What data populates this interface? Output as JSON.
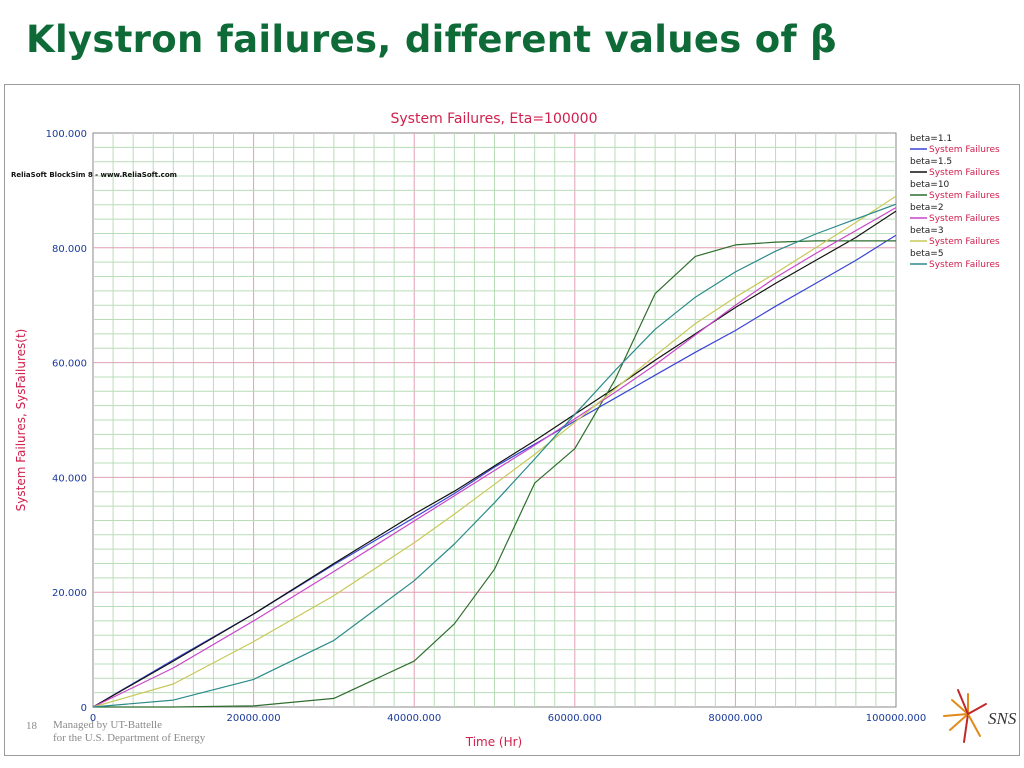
{
  "slide": {
    "title": "Klystron failures, different values of β",
    "page_number": "18",
    "footer_line1": "Managed by UT-Battelle",
    "footer_line2": "for the U.S. Department of Energy",
    "logo_text": "SNS"
  },
  "source": "ReliaSoft BlockSim 8 - www.ReliaSoft.com",
  "colors": {
    "title": "#0e6b37",
    "chart_title": "#d0204c",
    "axis_label": "#d0204c",
    "tick_label": "#1a3a9a",
    "grid_minor": "#b9dcb9",
    "grid_major": "#e0a0b0"
  },
  "chart_data": {
    "type": "line",
    "title": "System Failures, Eta=100000",
    "xlabel": "Time (Hr)",
    "ylabel": "System Failures, SysFailures(t)",
    "xlim": [
      0,
      100000
    ],
    "ylim": [
      0,
      100
    ],
    "x_ticks": [
      {
        "value": 0,
        "label": "0"
      },
      {
        "value": 20000,
        "label": "20000.000"
      },
      {
        "value": 40000,
        "label": "40000.000"
      },
      {
        "value": 60000,
        "label": "60000.000"
      },
      {
        "value": 80000,
        "label": "80000.000"
      },
      {
        "value": 100000,
        "label": "100000.000"
      }
    ],
    "y_ticks": [
      {
        "value": 0,
        "label": "0"
      },
      {
        "value": 20,
        "label": "20.000"
      },
      {
        "value": 40,
        "label": "40.000"
      },
      {
        "value": 60,
        "label": "60.000"
      },
      {
        "value": 80,
        "label": "80.000"
      },
      {
        "value": 100,
        "label": "100.000"
      }
    ],
    "grid": true,
    "legend_position": "right",
    "x": [
      0,
      10000,
      20000,
      30000,
      40000,
      45000,
      50000,
      55000,
      60000,
      65000,
      70000,
      75000,
      80000,
      85000,
      90000,
      95000,
      100000
    ],
    "series": [
      {
        "name": "beta=1.1",
        "entry_label": "System Failures",
        "color": "#3a44d6",
        "values": [
          0,
          8.2,
          16.2,
          24.8,
          33.0,
          37.2,
          41.8,
          45.8,
          49.8,
          53.8,
          57.8,
          61.8,
          65.6,
          69.8,
          73.8,
          77.8,
          82.2
        ]
      },
      {
        "name": "beta=1.5",
        "entry_label": "System Failures",
        "color": "#111111",
        "values": [
          0,
          8.0,
          16.2,
          25.0,
          33.6,
          37.6,
          42.0,
          46.4,
          51.0,
          55.6,
          60.4,
          65.0,
          69.6,
          73.8,
          77.8,
          81.8,
          86.4
        ]
      },
      {
        "name": "beta=10",
        "entry_label": "System Failures",
        "color": "#2f6e2f",
        "values": [
          0,
          0,
          0.2,
          1.5,
          8.0,
          14.5,
          24.0,
          39.0,
          45.0,
          57.0,
          72.0,
          78.5,
          80.5,
          81.0,
          81.2,
          81.2,
          81.2
        ]
      },
      {
        "name": "beta=2",
        "entry_label": "System Failures",
        "color": "#cc44cc",
        "values": [
          0,
          6.8,
          15.0,
          23.6,
          32.4,
          36.8,
          41.2,
          45.6,
          50.2,
          54.8,
          59.6,
          64.8,
          70.0,
          74.8,
          79.0,
          83.0,
          87.0
        ]
      },
      {
        "name": "beta=3",
        "entry_label": "System Failures",
        "color": "#c8c85a",
        "values": [
          0,
          4.0,
          11.4,
          19.4,
          28.6,
          33.6,
          38.8,
          44.0,
          49.6,
          55.4,
          61.2,
          66.8,
          71.4,
          75.6,
          80.0,
          84.4,
          89.0
        ]
      },
      {
        "name": "beta=5",
        "entry_label": "System Failures",
        "color": "#2b8a8a",
        "values": [
          0,
          1.2,
          4.8,
          11.6,
          22.0,
          28.4,
          35.6,
          43.2,
          51.0,
          58.6,
          65.8,
          71.4,
          75.8,
          79.4,
          82.4,
          85.0,
          87.6
        ]
      }
    ]
  }
}
